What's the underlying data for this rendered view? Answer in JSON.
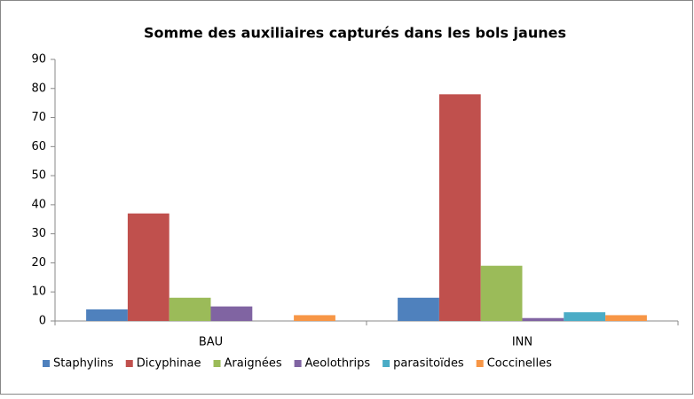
{
  "chart_data": {
    "type": "bar",
    "title": "Somme des auxiliaires capturés dans les bols jaunes",
    "categories": [
      "BAU",
      "INN"
    ],
    "series": [
      {
        "name": "Staphylins",
        "color": "#4f81bd",
        "values": [
          4,
          8
        ]
      },
      {
        "name": "Dicyphinae",
        "color": "#c0504d",
        "values": [
          37,
          78
        ]
      },
      {
        "name": "Araignées",
        "color": "#9bbb59",
        "values": [
          8,
          19
        ]
      },
      {
        "name": "Aeolothrips",
        "color": "#8064a2",
        "values": [
          5,
          1
        ]
      },
      {
        "name": "parasitoïdes",
        "color": "#4bacc6",
        "values": [
          0,
          3
        ]
      },
      {
        "name": "Coccinelles",
        "color": "#f79646",
        "values": [
          2,
          2
        ]
      }
    ],
    "ylim": [
      0,
      90
    ],
    "yticks": [
      0,
      10,
      20,
      30,
      40,
      50,
      60,
      70,
      80,
      90
    ],
    "grid": false,
    "legend": "bottom"
  }
}
